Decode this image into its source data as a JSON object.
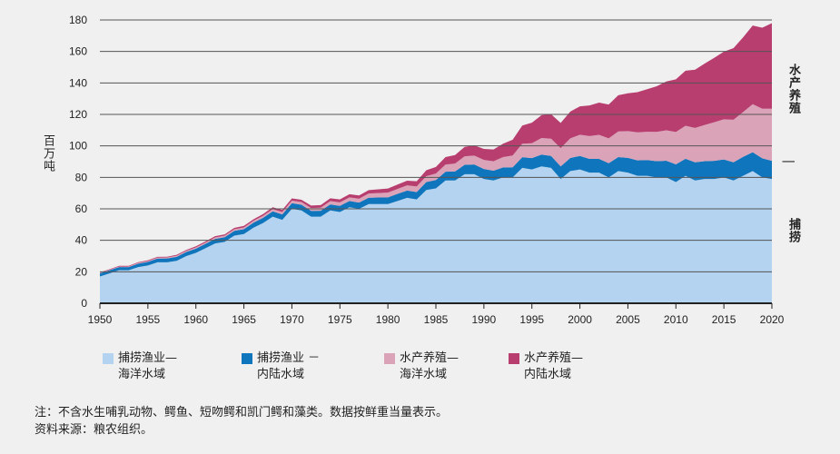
{
  "chart_data": {
    "type": "area",
    "stacked": true,
    "ylabel": "百万吨",
    "ylim": [
      0,
      180
    ],
    "yticks": [
      0,
      20,
      40,
      60,
      80,
      100,
      120,
      140,
      160,
      180
    ],
    "xlim": [
      1950,
      2020
    ],
    "xticks": [
      1950,
      1955,
      1960,
      1965,
      1970,
      1975,
      1980,
      1985,
      1990,
      1995,
      2000,
      2005,
      2010,
      2015,
      2020
    ],
    "grid": "horizontal",
    "legend_position": "bottom",
    "x_start": 1950,
    "series": [
      {
        "name": "捕捞渔业—海洋水域",
        "color": "#b3d3f0",
        "values": [
          17,
          19,
          21,
          21,
          23,
          24,
          26,
          26,
          27,
          30,
          32,
          35,
          38,
          39,
          43,
          44,
          48,
          51,
          55,
          53,
          60,
          59,
          55,
          55,
          59,
          58,
          61,
          60,
          63,
          63,
          63,
          65,
          67,
          66,
          72,
          73,
          78,
          78,
          82,
          82,
          79,
          78,
          80,
          80,
          86,
          85,
          87,
          86,
          79,
          84,
          85,
          83,
          83,
          80,
          84,
          83,
          81,
          81,
          80,
          80,
          77,
          81,
          78,
          79,
          79,
          80,
          78,
          81,
          84,
          80,
          79
        ]
      },
      {
        "name": "捕捞渔业－内陆水域",
        "color": "#0f75bc",
        "values": [
          2,
          2,
          2,
          2,
          2.2,
          2.3,
          2.4,
          2.5,
          2.5,
          2.6,
          2.7,
          2.8,
          2.9,
          3,
          3,
          3.1,
          3.2,
          3.3,
          3.4,
          3.5,
          3.6,
          3.6,
          3.7,
          3.8,
          3.8,
          3.9,
          4,
          4,
          4.1,
          4.2,
          4.3,
          4.5,
          4.6,
          4.7,
          5,
          5.3,
          5.6,
          5.8,
          6,
          6.2,
          6.3,
          6.2,
          6.3,
          6.4,
          6.8,
          7.2,
          7.5,
          7.6,
          8,
          8.3,
          8.6,
          8.7,
          8.7,
          9,
          8.9,
          9.4,
          9.8,
          10,
          10.3,
          10.6,
          11.3,
          10.8,
          11.6,
          11.3,
          11.5,
          11.4,
          11.6,
          12,
          12,
          12.1,
          11.5
        ]
      },
      {
        "name": "水产养殖—海洋水域",
        "color": "#dba3b8",
        "values": [
          0.3,
          0.3,
          0.4,
          0.4,
          0.5,
          0.5,
          0.6,
          0.6,
          0.7,
          0.7,
          0.8,
          0.8,
          0.9,
          1,
          1,
          1.1,
          1.2,
          1.3,
          1.4,
          1.5,
          1.6,
          1.7,
          1.8,
          1.9,
          2.1,
          2.2,
          2.3,
          2.4,
          2.6,
          2.8,
          3,
          3.1,
          3.3,
          3.5,
          3.8,
          4.1,
          4.5,
          5,
          5.4,
          5.6,
          5.8,
          6,
          6.6,
          7.5,
          8.6,
          9.5,
          10.5,
          11,
          11.6,
          12.5,
          13.5,
          14.5,
          15.3,
          15.8,
          16.3,
          17,
          17.8,
          18,
          18.6,
          19.3,
          20.5,
          21,
          21.8,
          23,
          24.5,
          25.5,
          27,
          28.5,
          30.5,
          31.5,
          33.1
        ]
      },
      {
        "name": "水产养殖—内陆水域",
        "color": "#b83e6f",
        "values": [
          0.3,
          0.3,
          0.4,
          0.4,
          0.4,
          0.5,
          0.5,
          0.5,
          0.6,
          0.6,
          0.7,
          0.7,
          0.8,
          0.8,
          0.9,
          1,
          1,
          1.1,
          1.2,
          1.3,
          1.4,
          1.5,
          1.6,
          1.7,
          1.8,
          1.9,
          2,
          2.1,
          2.2,
          2.4,
          2.6,
          2.8,
          3,
          3.3,
          3.7,
          4.2,
          4.8,
          5.4,
          6,
          6.5,
          7,
          7.5,
          8.5,
          10,
          11.5,
          13,
          14.5,
          15.5,
          16,
          17,
          18,
          19.5,
          20.5,
          21.5,
          23,
          24,
          25.5,
          27,
          29,
          31,
          33.5,
          35,
          37,
          39,
          41,
          43,
          45.5,
          47.5,
          50,
          51.5,
          54.4
        ]
      }
    ]
  },
  "side_labels": {
    "aquaculture": "水产养殖",
    "divider": "|",
    "capture": "捕捞"
  },
  "legend": [
    {
      "line1": "捕捞渔业—",
      "line2": "海洋水域"
    },
    {
      "line1": "捕捞渔业 －",
      "line2": "内陆水域"
    },
    {
      "line1": "水产养殖—",
      "line2": "海洋水域"
    },
    {
      "line1": "水产养殖—",
      "line2": "内陆水域"
    }
  ],
  "notes": {
    "note": "注：不含水生哺乳动物、鳄鱼、短吻鳄和凯门鳄和藻类。数据按鲜重当量表示。",
    "source": "资料来源：粮农组织。"
  }
}
